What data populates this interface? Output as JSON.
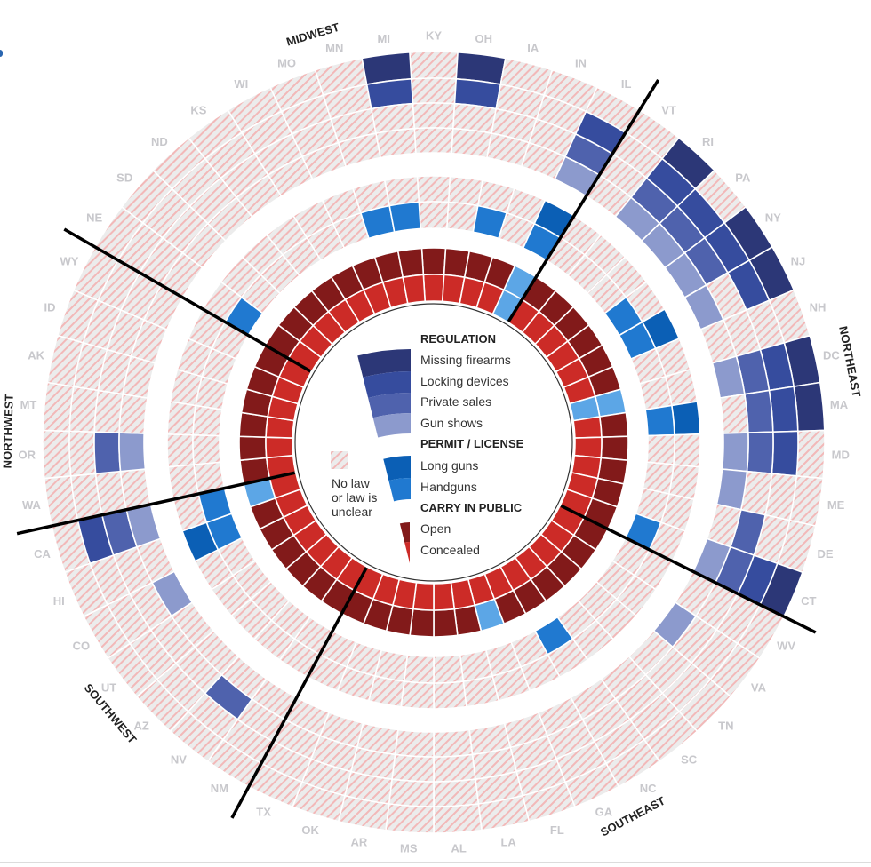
{
  "legend": {
    "regulation_heading": "REGULATION",
    "missing_firearms": "Missing firearms",
    "locking_devices": "Locking devices",
    "private_sales": "Private sales",
    "gun_shows": "Gun shows",
    "permit_heading": "PERMIT / LICENSE",
    "long_guns": "Long guns",
    "handguns": "Handguns",
    "carry_heading": "CARRY IN PUBLIC",
    "open": "Open",
    "concealed": "Concealed",
    "no_law_line1": "No law",
    "no_law_line2": "or law is",
    "no_law_line3": "unclear"
  },
  "colors": {
    "missing_firearms": "#2c3777",
    "locking_devices": "#364c9e",
    "private_sales": "#4f62ad",
    "gun_shows": "#8c9acd",
    "long_guns": "#0b5fb5",
    "handguns": "#2079d0",
    "open": "#821a1a",
    "concealed": "#cc2b27",
    "not_allowed": "#5ca6e6",
    "hatch_bg": "#ececec",
    "hatch_stripe": "#f2b8b8",
    "state_label": "#c8c8cc",
    "divider": "#000000"
  },
  "chart_data": {
    "type": "radial-heatmap",
    "title": "",
    "states": [
      "KY",
      "OH",
      "IA",
      "IN",
      "IL",
      "VT",
      "RI",
      "PA",
      "NY",
      "NJ",
      "NH",
      "DC",
      "MA",
      "MD",
      "ME",
      "DE",
      "CT",
      "WV",
      "VA",
      "TN",
      "SC",
      "NC",
      "GA",
      "FL",
      "LA",
      "AL",
      "MS",
      "AR",
      "OK",
      "TX",
      "NM",
      "NV",
      "AZ",
      "UT",
      "CO",
      "HI",
      "CA",
      "WA",
      "OR",
      "MT",
      "AK",
      "ID",
      "WY",
      "NE",
      "SD",
      "ND",
      "KS",
      "WI",
      "MO",
      "MN",
      "MI"
    ],
    "regions": [
      {
        "name": "MIDWEST",
        "from": "NE",
        "to": "IL"
      },
      {
        "name": "NORTHEAST",
        "from": "VT",
        "to": "CT"
      },
      {
        "name": "SOUTHEAST",
        "from": "WV",
        "to": "TX"
      },
      {
        "name": "SOUTHWEST",
        "from": "NM",
        "to": "CA"
      },
      {
        "name": "NORTHWEST",
        "from": "WA",
        "to": "ID"
      }
    ],
    "series": [
      {
        "name": "Missing firearms",
        "group": "REGULATION",
        "states_with_law": [
          "OH",
          "RI",
          "NY",
          "NJ",
          "DC",
          "MA",
          "CT",
          "MI"
        ]
      },
      {
        "name": "Locking devices",
        "group": "REGULATION",
        "states_with_law": [
          "OH",
          "IL",
          "RI",
          "PA",
          "NY",
          "NJ",
          "DC",
          "MA",
          "MD",
          "CT",
          "CA",
          "MI"
        ]
      },
      {
        "name": "Private sales",
        "group": "REGULATION",
        "states_with_law": [
          "IL",
          "RI",
          "PA",
          "NY",
          "DC",
          "MA",
          "MD",
          "DE",
          "CT",
          "NV",
          "CA",
          "OR"
        ]
      },
      {
        "name": "Gun shows",
        "group": "REGULATION",
        "states_with_law": [
          "IL",
          "RI",
          "PA",
          "NY",
          "NJ",
          "DC",
          "MD",
          "ME",
          "CT",
          "VA",
          "CO",
          "CA",
          "OR"
        ]
      },
      {
        "name": "Long guns",
        "group": "PERMIT / LICENSE",
        "states_with_law": [
          "IL",
          "NJ",
          "MA",
          "HI"
        ]
      },
      {
        "name": "Handguns",
        "group": "PERMIT / LICENSE",
        "states_with_law": [
          "IA",
          "IL",
          "NY",
          "NJ",
          "MA",
          "CT",
          "NC",
          "HI",
          "CA",
          "NE",
          "MN",
          "MI"
        ]
      },
      {
        "name": "Open",
        "group": "CARRY IN PUBLIC",
        "states_not_allowed": [
          "IL",
          "DC",
          "FL",
          "CA"
        ]
      },
      {
        "name": "Concealed",
        "group": "CARRY IN PUBLIC",
        "states_not_allowed": [
          "IL",
          "DC"
        ]
      }
    ]
  }
}
